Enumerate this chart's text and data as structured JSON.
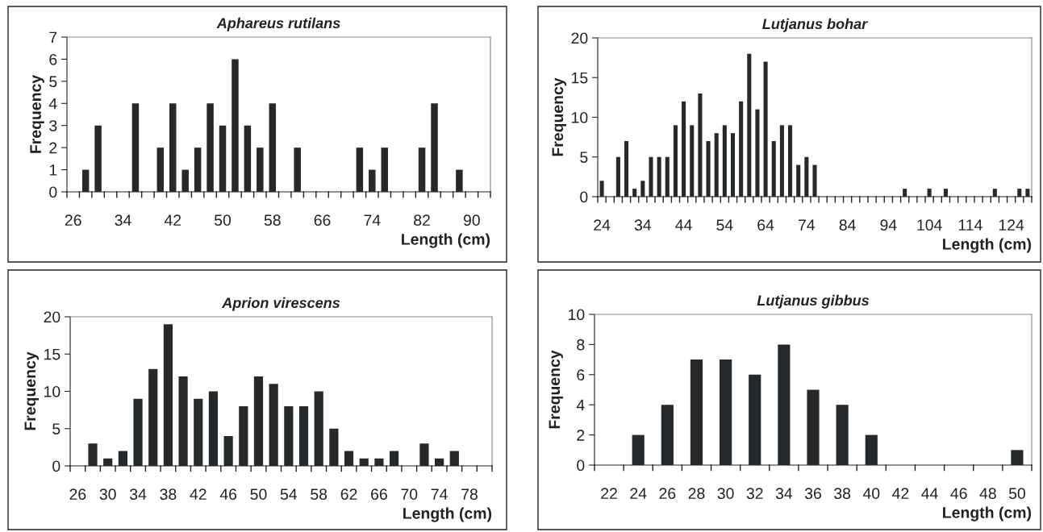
{
  "chart_data": [
    {
      "type": "bar",
      "title": "Aphareus rutilans",
      "xlabel": "Length (cm)",
      "ylabel": "Frequency",
      "color": "#25292b",
      "ylim": [
        0,
        7
      ],
      "yticks": [
        0,
        1,
        2,
        3,
        4,
        5,
        6,
        7
      ],
      "grid": false,
      "legend": false,
      "categories": [
        "26",
        null,
        null,
        null,
        "34",
        null,
        null,
        null,
        "42",
        null,
        null,
        null,
        "50",
        null,
        null,
        null,
        "58",
        null,
        null,
        null,
        "66",
        null,
        null,
        null,
        "74",
        null,
        null,
        null,
        "82",
        null,
        null,
        null,
        "90",
        null
      ],
      "values": [
        0,
        1,
        3,
        0,
        0,
        4,
        0,
        2,
        4,
        1,
        2,
        4,
        3,
        6,
        3,
        2,
        4,
        0,
        2,
        0,
        0,
        0,
        0,
        2,
        1,
        2,
        0,
        0,
        2,
        4,
        0,
        1,
        0,
        0
      ]
    },
    {
      "type": "bar",
      "title": "Lutjanus bohar",
      "xlabel": "Length (cm)",
      "ylabel": "Frequency",
      "color": "#25292b",
      "ylim": [
        0,
        20
      ],
      "yticks": [
        0,
        5,
        10,
        15,
        20
      ],
      "grid": false,
      "legend": false,
      "categories": [
        "24",
        null,
        null,
        null,
        null,
        "34",
        null,
        null,
        null,
        null,
        "44",
        null,
        null,
        null,
        null,
        "54",
        null,
        null,
        null,
        null,
        "64",
        null,
        null,
        null,
        null,
        "74",
        null,
        null,
        null,
        null,
        "84",
        null,
        null,
        null,
        null,
        "94",
        null,
        null,
        null,
        null,
        "104",
        null,
        null,
        null,
        null,
        "114",
        null,
        null,
        null,
        null,
        "124",
        null,
        null
      ],
      "values": [
        2,
        0,
        5,
        7,
        1,
        2,
        5,
        5,
        5,
        9,
        12,
        9,
        13,
        7,
        8,
        9,
        8,
        12,
        18,
        11,
        17,
        7,
        9,
        9,
        4,
        5,
        4,
        0,
        0,
        0,
        0,
        0,
        0,
        0,
        0,
        0,
        0,
        1,
        0,
        0,
        1,
        0,
        1,
        0,
        0,
        0,
        0,
        0,
        1,
        0,
        0,
        1,
        1
      ]
    },
    {
      "type": "bar",
      "title": "Aprion virescens",
      "xlabel": "Length (cm)",
      "ylabel": "Frequency",
      "color": "#25292b",
      "ylim": [
        0,
        20
      ],
      "yticks": [
        0,
        5,
        10,
        15,
        20
      ],
      "grid": false,
      "legend": false,
      "categories": [
        "26",
        null,
        "30",
        null,
        "34",
        null,
        "38",
        null,
        "42",
        null,
        "46",
        null,
        "50",
        null,
        "54",
        null,
        "58",
        null,
        "62",
        null,
        "66",
        null,
        "70",
        null,
        "74",
        null,
        "78",
        null
      ],
      "values": [
        0,
        3,
        1,
        2,
        9,
        13,
        19,
        12,
        9,
        10,
        4,
        8,
        12,
        11,
        8,
        8,
        10,
        5,
        2,
        1,
        1,
        2,
        0,
        3,
        1,
        2,
        0,
        0
      ]
    },
    {
      "type": "bar",
      "title": "Lutjanus gibbus",
      "xlabel": "Length (cm)",
      "ylabel": "Frequency",
      "color": "#25292b",
      "ylim": [
        0,
        10
      ],
      "yticks": [
        0,
        2,
        4,
        6,
        8,
        10
      ],
      "grid": false,
      "legend": false,
      "categories": [
        "22",
        "24",
        "26",
        "28",
        "30",
        "32",
        "34",
        "36",
        "38",
        "40",
        "42",
        "44",
        "46",
        "48",
        "50"
      ],
      "values": [
        0,
        2,
        4,
        7,
        7,
        6,
        8,
        5,
        4,
        2,
        0,
        0,
        0,
        0,
        1
      ]
    }
  ]
}
